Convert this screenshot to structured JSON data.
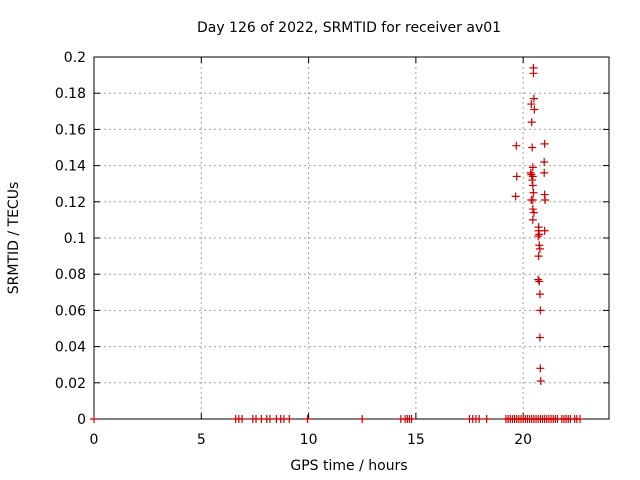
{
  "chart_data": {
    "type": "scatter",
    "title": "Day 126 of 2022, SRMTID for receiver av01",
    "xlabel": "GPS time / hours",
    "ylabel": "SRMTID / TECUs",
    "xlim": [
      0,
      24
    ],
    "ylim": [
      0,
      0.2
    ],
    "x_ticks": [
      0,
      5,
      10,
      15,
      20
    ],
    "x_tick_labels": [
      "0",
      "5",
      "10",
      "15",
      "20"
    ],
    "y_ticks": [
      0,
      0.02,
      0.04,
      0.06,
      0.08,
      0.1,
      0.12,
      0.14,
      0.16,
      0.18,
      0.2
    ],
    "y_tick_labels": [
      "0",
      "0.02",
      "0.04",
      "0.06",
      "0.08",
      "0.1",
      "0.12",
      "0.14",
      "0.16",
      "0.18",
      "0.2"
    ],
    "grid": true,
    "marker": "+",
    "color": "#cc0000",
    "series": [
      {
        "name": "av01",
        "points": [
          [
            0.0,
            0
          ],
          [
            6.6,
            0
          ],
          [
            6.75,
            0
          ],
          [
            6.9,
            0
          ],
          [
            7.4,
            0
          ],
          [
            7.55,
            0
          ],
          [
            7.8,
            0
          ],
          [
            8.05,
            0
          ],
          [
            8.2,
            0
          ],
          [
            8.5,
            0
          ],
          [
            8.7,
            0
          ],
          [
            8.85,
            0
          ],
          [
            9.1,
            0
          ],
          [
            9.95,
            0
          ],
          [
            12.5,
            0
          ],
          [
            14.3,
            0
          ],
          [
            14.5,
            0
          ],
          [
            14.6,
            0
          ],
          [
            14.7,
            0
          ],
          [
            14.8,
            0
          ],
          [
            17.5,
            0
          ],
          [
            17.65,
            0
          ],
          [
            17.8,
            0
          ],
          [
            17.95,
            0
          ],
          [
            18.3,
            0
          ],
          [
            19.2,
            0
          ],
          [
            19.3,
            0
          ],
          [
            19.4,
            0
          ],
          [
            19.5,
            0
          ],
          [
            19.6,
            0
          ],
          [
            19.7,
            0
          ],
          [
            19.8,
            0
          ],
          [
            19.9,
            0
          ],
          [
            20.0,
            0
          ],
          [
            20.1,
            0
          ],
          [
            20.2,
            0
          ],
          [
            20.3,
            0
          ],
          [
            20.4,
            0
          ],
          [
            20.5,
            0
          ],
          [
            20.6,
            0
          ],
          [
            20.7,
            0
          ],
          [
            20.8,
            0
          ],
          [
            20.9,
            0
          ],
          [
            21.0,
            0
          ],
          [
            21.1,
            0
          ],
          [
            21.2,
            0
          ],
          [
            21.3,
            0
          ],
          [
            21.4,
            0
          ],
          [
            21.5,
            0
          ],
          [
            21.6,
            0
          ],
          [
            21.8,
            0
          ],
          [
            21.9,
            0
          ],
          [
            22.0,
            0
          ],
          [
            22.1,
            0
          ],
          [
            22.2,
            0
          ],
          [
            22.4,
            0
          ],
          [
            22.5,
            0
          ],
          [
            22.65,
            0
          ],
          [
            20.48,
            0.194
          ],
          [
            20.48,
            0.191
          ],
          [
            20.5,
            0.177
          ],
          [
            20.38,
            0.174
          ],
          [
            20.52,
            0.171
          ],
          [
            20.4,
            0.164
          ],
          [
            19.68,
            0.151
          ],
          [
            20.42,
            0.15
          ],
          [
            21.0,
            0.152
          ],
          [
            20.98,
            0.142
          ],
          [
            20.45,
            0.139
          ],
          [
            20.35,
            0.136
          ],
          [
            20.38,
            0.135
          ],
          [
            20.45,
            0.134
          ],
          [
            19.7,
            0.134
          ],
          [
            20.42,
            0.132
          ],
          [
            20.98,
            0.136
          ],
          [
            20.45,
            0.129
          ],
          [
            20.48,
            0.125
          ],
          [
            19.65,
            0.123
          ],
          [
            21.0,
            0.124
          ],
          [
            20.38,
            0.121
          ],
          [
            20.45,
            0.121
          ],
          [
            21.02,
            0.121
          ],
          [
            20.45,
            0.116
          ],
          [
            20.5,
            0.114
          ],
          [
            20.45,
            0.11
          ],
          [
            20.72,
            0.106
          ],
          [
            20.72,
            0.104
          ],
          [
            21.0,
            0.104
          ],
          [
            20.75,
            0.102
          ],
          [
            20.7,
            0.101
          ],
          [
            20.75,
            0.096
          ],
          [
            20.78,
            0.094
          ],
          [
            20.72,
            0.09
          ],
          [
            20.7,
            0.077
          ],
          [
            20.75,
            0.076
          ],
          [
            20.78,
            0.069
          ],
          [
            20.8,
            0.06
          ],
          [
            20.78,
            0.045
          ],
          [
            20.8,
            0.028
          ],
          [
            20.82,
            0.021
          ]
        ]
      }
    ]
  }
}
